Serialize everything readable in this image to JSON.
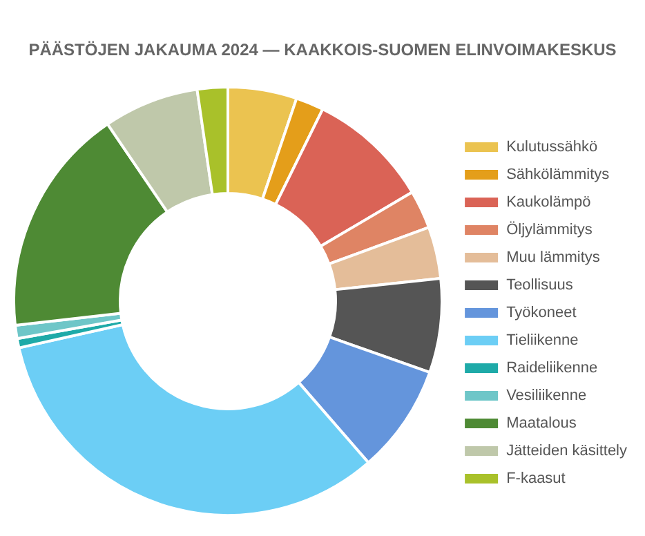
{
  "chart_data": {
    "type": "donut",
    "title": "PÄÄSTÖJEN JAKAUMA 2024 — KAAKKOIS-SUOMEN ELINVOIMAKESKUS",
    "categories": [
      "Kulutussähkö",
      "Sähkölämmitys",
      "Kaukolämpö",
      "Öljylämmitys",
      "Muu lämmitys",
      "Teollisuus",
      "Työkoneet",
      "Tieliikenne",
      "Raideliikenne",
      "Vesiliikenne",
      "Maatalous",
      "Jätteiden käsittely",
      "F-kaasut"
    ],
    "values": [
      5.2,
      2.1,
      9.2,
      2.9,
      3.9,
      7.1,
      8.2,
      32.9,
      0.7,
      1.0,
      17.3,
      7.2,
      2.3
    ],
    "colors": [
      "#ebc350",
      "#e49e1a",
      "#da6356",
      "#df8464",
      "#e4bd99",
      "#555555",
      "#6495dc",
      "#6ccef5",
      "#1eaaa8",
      "#6ec6c8",
      "#4e8a34",
      "#bfc8aa",
      "#a9c12a"
    ],
    "legend": "right"
  }
}
